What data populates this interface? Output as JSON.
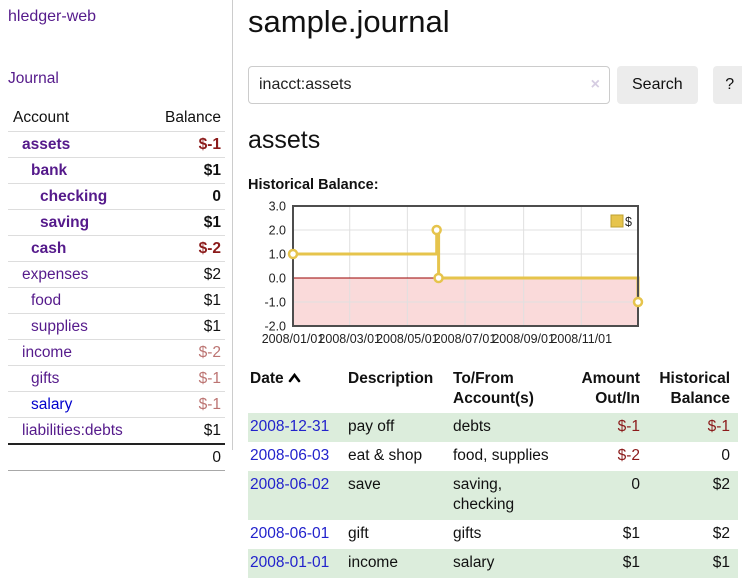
{
  "app": {
    "brand": "hledger-web"
  },
  "colors": {
    "link_purple": "#551a8b",
    "link_blue": "#0000cc",
    "negative_dark": "#8b1a1a",
    "negative_light": "#bc7472",
    "row_shade_green": "#dceddc"
  },
  "sidebar": {
    "journal_link": "Journal",
    "accounts_table": {
      "headers": [
        "Account",
        "Balance"
      ],
      "rows": [
        {
          "name": "assets",
          "balance": "$-1",
          "indent": 1,
          "bold": true,
          "neg": "dark"
        },
        {
          "name": "bank",
          "balance": "$1",
          "indent": 2,
          "bold": true
        },
        {
          "name": "checking",
          "balance": "0",
          "indent": 3,
          "bold": true
        },
        {
          "name": "saving",
          "balance": "$1",
          "indent": 3,
          "bold": true
        },
        {
          "name": "cash",
          "balance": "$-2",
          "indent": 2,
          "bold": true,
          "neg": "dark"
        },
        {
          "name": "expenses",
          "balance": "$2",
          "indent": 1
        },
        {
          "name": "food",
          "balance": "$1",
          "indent": 2
        },
        {
          "name": "supplies",
          "balance": "$1",
          "indent": 2
        },
        {
          "name": "income",
          "balance": "$-2",
          "indent": 1,
          "neg": "light"
        },
        {
          "name": "gifts",
          "balance": "$-1",
          "indent": 2,
          "neg": "light"
        },
        {
          "name": "salary",
          "balance": "$-1",
          "indent": 2,
          "neg": "light",
          "unvisited": true
        },
        {
          "name": "liabilities:debts",
          "balance": "$1",
          "indent": 1
        }
      ],
      "total": "0"
    }
  },
  "header": {
    "title": "sample.journal"
  },
  "search": {
    "value": "inacct:assets",
    "clear_icon": "×",
    "button": "Search",
    "help_button": "?"
  },
  "account_page": {
    "title": "assets",
    "chart_label": "Historical Balance:"
  },
  "chart_data": {
    "type": "line",
    "step": true,
    "title": "Historical Balance:",
    "series": [
      {
        "name": "$",
        "x": [
          "2008-01-01",
          "2008-06-01",
          "2008-06-03",
          "2008-12-31"
        ],
        "values": [
          1,
          2,
          0,
          -1
        ]
      }
    ],
    "x_range": [
      "2008-01-01",
      "2008-12-31"
    ],
    "ylim": [
      -2,
      3
    ],
    "y_ticks": [
      "3.0",
      "2.0",
      "1.0",
      "0.0",
      "-1.0",
      "-2.0"
    ],
    "x_ticks": [
      "2008/01/01",
      "2008/03/01",
      "2008/05/01",
      "2008/07/01",
      "2008/09/01",
      "2008/11/01"
    ],
    "legend": {
      "label": "$",
      "position": "top-right"
    },
    "grid": true,
    "colors": {
      "line": "#e6c44c",
      "legend_border": "#bda02f",
      "marker_fill": "#ffffff",
      "negative_region": "#fadada",
      "zero_line": "#990000",
      "grid": "#e0e0e0",
      "border": "#4d4d4d",
      "tick_text": "#222222"
    }
  },
  "register": {
    "columns": [
      {
        "line1": "Date",
        "sort": "ascending"
      },
      {
        "line1": "Description"
      },
      {
        "line1": "To/From",
        "line2": "Account(s)"
      },
      {
        "line1": "Amount",
        "line2": "Out/In",
        "align": "right"
      },
      {
        "line1": "Historical",
        "line2": "Balance",
        "align": "right"
      }
    ],
    "rows": [
      {
        "date": "2008-12-31",
        "description": "pay off",
        "accounts": "debts",
        "amount": "$-1",
        "balance": "$-1",
        "amount_neg": true,
        "balance_neg": true,
        "shaded": true
      },
      {
        "date": "2008-06-03",
        "description": "eat & shop",
        "accounts": "food, supplies",
        "amount": "$-2",
        "balance": "0",
        "amount_neg": true
      },
      {
        "date": "2008-06-02",
        "description": "save",
        "accounts": "saving, checking",
        "amount": "0",
        "balance": "$2",
        "shaded": true
      },
      {
        "date": "2008-06-01",
        "description": "gift",
        "accounts": "gifts",
        "amount": "$1",
        "balance": "$2"
      },
      {
        "date": "2008-01-01",
        "description": "income",
        "accounts": "salary",
        "amount": "$1",
        "balance": "$1",
        "shaded": true
      }
    ]
  }
}
